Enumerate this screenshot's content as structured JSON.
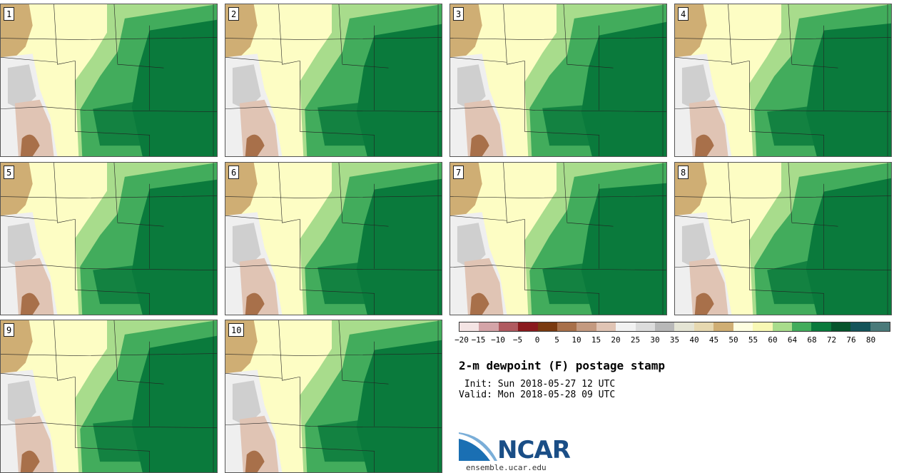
{
  "title": "2-m dewpoint (F) postage stamp",
  "init": " Init: Sun 2018-05-27 12 UTC",
  "valid": "Valid: Mon 2018-05-28 09 UTC",
  "url": "ensemble.ucar.edu",
  "logo_text": "NCAR",
  "panels": [
    "1",
    "2",
    "3",
    "4",
    "5",
    "6",
    "7",
    "8",
    "9",
    "10"
  ],
  "colorbar": {
    "ticks": [
      "-20",
      "-15",
      "-10",
      "-5",
      "0",
      "5",
      "10",
      "15",
      "20",
      "25",
      "30",
      "35",
      "40",
      "45",
      "50",
      "55",
      "60",
      "64",
      "68",
      "72",
      "76",
      "80"
    ],
    "colors": [
      "#f4e4e4",
      "#d4a4a8",
      "#b05a60",
      "#8a1a1e",
      "#7a3a10",
      "#a8704a",
      "#c49a80",
      "#e0c4b4",
      "#f2f2f2",
      "#dcdcdc",
      "#b8b8b8",
      "#e4e4d4",
      "#e6d8b0",
      "#cfae74",
      "#fefee0",
      "#f8f8b4",
      "#a8dc8c",
      "#42ac5c",
      "#0a7a3c",
      "#06542c",
      "#14545a",
      "#4a7a7a"
    ]
  },
  "map_colors": {
    "desert": "#cfae74",
    "light_yellow": "#fdfdc4",
    "pale_green": "#a8dc8c",
    "mid_green": "#42ac5c",
    "dark_green": "#0a7a3c",
    "gray": "#cfcfcf",
    "light_gray": "#efefef",
    "brown": "#a8704a",
    "pale_brown": "#e0c4b4"
  }
}
